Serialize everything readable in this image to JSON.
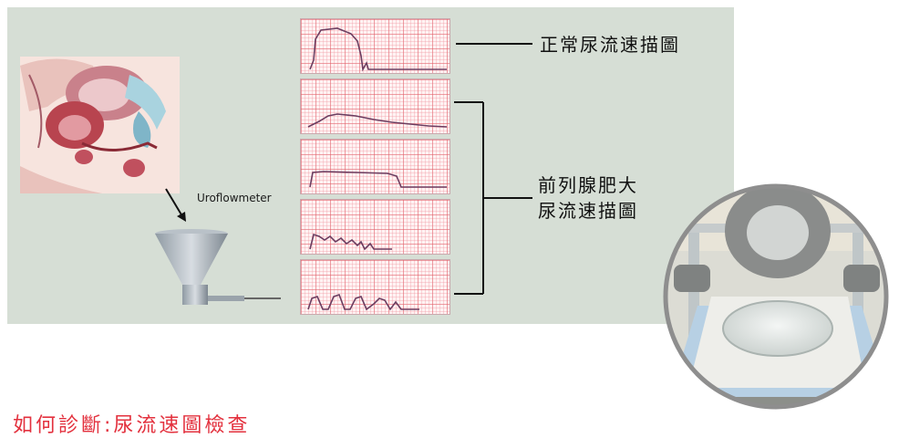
{
  "labels": {
    "device": "Uroflowmeter",
    "normal": "正常尿流速描圖",
    "bph_line1": "前列腺肥大",
    "bph_line2": "尿流速描圖"
  },
  "bottom_text": "如何診斷:尿流速圖檢查",
  "colors": {
    "panel": "#d6ded5",
    "trace": "#6b3d60",
    "connector": "#111111",
    "bottom_text": "#e3313e"
  },
  "icons": [
    "anatomy-illustration",
    "down-arrow-icon",
    "funnel-device-icon",
    "commode-photo"
  ]
}
